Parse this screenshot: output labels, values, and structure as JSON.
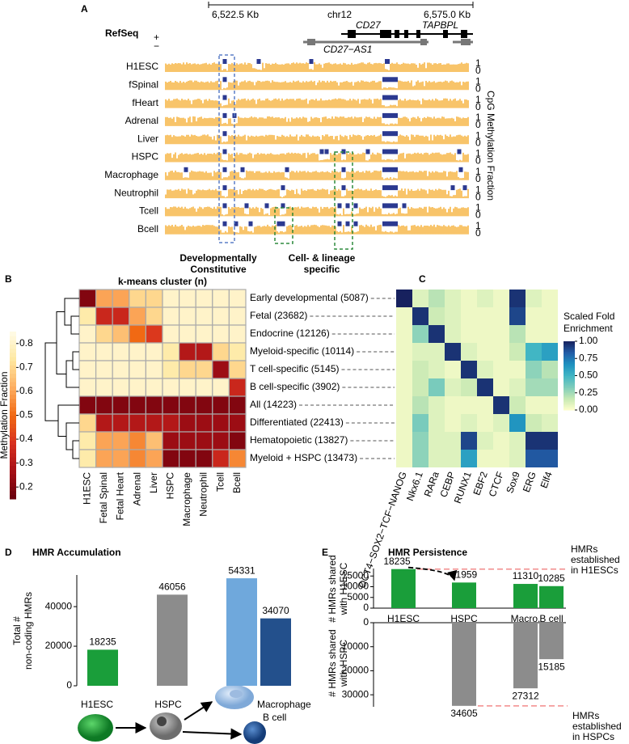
{
  "panel_labels": [
    "A",
    "B",
    "C",
    "D",
    "E"
  ],
  "browser": {
    "scale_left": "6,522.5 Kb",
    "chrom": "chr12",
    "scale_right": "6,575.0 Kb",
    "refseq": "RefSeq",
    "strand_plus": "+",
    "strand_minus": "−",
    "genes": [
      "CD27",
      "TAPBPL",
      "CD27−AS1"
    ],
    "tracks": [
      "H1ESC",
      "fSpinal",
      "fHeart",
      "Adrenal",
      "Liver",
      "HSPC",
      "Macrophage",
      "Neutrophil",
      "Tcell",
      "Bcell"
    ],
    "ylim": [
      0,
      1
    ],
    "axis_label": "CpG Methylation Fraction",
    "box_labels": [
      [
        "Developmentally",
        "Constitutive"
      ],
      [
        "Cell- & lineage",
        "specific"
      ]
    ]
  },
  "chart_data": [
    {
      "type": "heatmap",
      "title": "k-means cluster (n)",
      "columns": [
        "H1ESC",
        "Fetal Spinal",
        "Fetal Heart",
        "Adrenal",
        "Liver",
        "HSPC",
        "Macrophage",
        "Neutrophil",
        "Tcell",
        "Bcell"
      ],
      "rows": [
        "Early developmental (5087)",
        "Fetal (23682)",
        "Endocrine (12126)",
        "Myeloid-specific (10114)",
        "T cell-specific (5145)",
        "B cell-specific (3902)",
        "All (14223)",
        "Differentiated (22413)",
        "Hematopoietic (13827)",
        "Myeloid + HSPC (13473)"
      ],
      "values": [
        [
          0.2,
          0.6,
          0.6,
          0.7,
          0.7,
          0.8,
          0.8,
          0.8,
          0.8,
          0.8
        ],
        [
          0.75,
          0.35,
          0.35,
          0.6,
          0.7,
          0.8,
          0.8,
          0.8,
          0.8,
          0.8
        ],
        [
          0.8,
          0.7,
          0.65,
          0.5,
          0.4,
          0.8,
          0.8,
          0.8,
          0.8,
          0.8
        ],
        [
          0.8,
          0.8,
          0.8,
          0.8,
          0.8,
          0.75,
          0.3,
          0.3,
          0.7,
          0.75
        ],
        [
          0.8,
          0.8,
          0.8,
          0.8,
          0.8,
          0.75,
          0.7,
          0.7,
          0.25,
          0.7
        ],
        [
          0.8,
          0.8,
          0.8,
          0.8,
          0.8,
          0.8,
          0.8,
          0.8,
          0.8,
          0.35
        ],
        [
          0.2,
          0.2,
          0.2,
          0.2,
          0.2,
          0.2,
          0.2,
          0.2,
          0.2,
          0.2
        ],
        [
          0.7,
          0.3,
          0.3,
          0.3,
          0.3,
          0.3,
          0.25,
          0.25,
          0.25,
          0.25
        ],
        [
          0.75,
          0.6,
          0.6,
          0.55,
          0.65,
          0.25,
          0.25,
          0.25,
          0.25,
          0.2
        ],
        [
          0.75,
          0.6,
          0.6,
          0.55,
          0.6,
          0.2,
          0.2,
          0.2,
          0.35,
          0.55
        ]
      ],
      "zlim": [
        0.15,
        0.85
      ],
      "zticks": [
        0.2,
        0.3,
        0.4,
        0.5,
        0.6,
        0.7,
        0.8
      ],
      "colorbar_label": [
        "Methylation Fraction"
      ],
      "colors": [
        "#67000d",
        "#a50f15",
        "#d7301f",
        "#f16913",
        "#fdae61",
        "#fee8a0",
        "#fffbe8"
      ]
    },
    {
      "type": "heatmap",
      "columns": [
        "OCT4−SOX2−TCF−NANOG",
        "Nkx6.1",
        "RARa",
        "CEBP",
        "RUNX1",
        "EBF2",
        "CTCF",
        "Sox9",
        "ERG",
        "Elf4"
      ],
      "values": [
        [
          1.0,
          0.1,
          0.2,
          0.1,
          0.05,
          0.1,
          0.05,
          0.95,
          0.1,
          0.05
        ],
        [
          0.05,
          0.95,
          0.15,
          0.1,
          0.05,
          0.05,
          0.05,
          0.9,
          0.05,
          0.05
        ],
        [
          0.05,
          0.3,
          0.95,
          0.1,
          0.05,
          0.05,
          0.05,
          0.2,
          0.05,
          0.05
        ],
        [
          0.05,
          0.1,
          0.1,
          0.95,
          0.1,
          0.05,
          0.05,
          0.15,
          0.5,
          0.6
        ],
        [
          0.05,
          0.15,
          0.1,
          0.05,
          0.95,
          0.1,
          0.05,
          0.05,
          0.3,
          0.2
        ],
        [
          0.05,
          0.15,
          0.35,
          0.1,
          0.15,
          0.95,
          0.05,
          0.1,
          0.25,
          0.25
        ],
        [
          0.05,
          0.2,
          0.1,
          0.05,
          0.05,
          0.05,
          0.95,
          0.15,
          0.05,
          0.05
        ],
        [
          0.05,
          0.35,
          0.1,
          0.05,
          0.1,
          0.05,
          0.1,
          0.65,
          0.15,
          0.1
        ],
        [
          0.05,
          0.3,
          0.1,
          0.1,
          0.9,
          0.1,
          0.05,
          0.1,
          0.95,
          0.95
        ],
        [
          0.05,
          0.3,
          0.1,
          0.1,
          0.6,
          0.05,
          0.05,
          0.1,
          0.85,
          0.85
        ]
      ],
      "zlim": [
        0,
        1
      ],
      "zticks": [
        {
          "value": 1,
          "label": "1.00"
        },
        {
          "value": 0.75,
          "label": "0.75"
        },
        {
          "value": 0.5,
          "label": "0.50"
        },
        {
          "value": 0.25,
          "label": "0.25"
        },
        {
          "value": 0,
          "label": "0.00"
        }
      ],
      "colorbar_label": [
        "Scaled Fold",
        "Enrichment"
      ],
      "colors": [
        "#ffffcc",
        "#c7e9b4",
        "#7fcdbb",
        "#41b6c4",
        "#1d91c0",
        "#225ea8",
        "#17215e"
      ]
    },
    {
      "type": "bar",
      "title": "HMR Accumulation",
      "ylabel": [
        "Total #",
        "non-coding HMRs"
      ],
      "categories": [
        "H1ESC",
        "HSPC",
        "Macrophage",
        "B cell"
      ],
      "values": [
        18235,
        46056,
        54331,
        34070
      ],
      "colors": [
        "#1a9e3a",
        "#8c8c8c",
        "#6fa8dc",
        "#23508c"
      ],
      "ylim": [
        0,
        56000
      ],
      "yticks": [
        0,
        20000,
        40000
      ]
    },
    {
      "type": "bar",
      "title": "HMR Persistence",
      "ylabel": [
        "# HMRs shared",
        "with H1ESC"
      ],
      "categories": [
        "H1ESC",
        "HSPC",
        "Macro.",
        "B cell"
      ],
      "values": [
        18235,
        11959,
        11310,
        10285
      ],
      "color": "#1a9e3a",
      "ylim": [
        0,
        18500
      ],
      "yticks": [
        0,
        5000,
        10000,
        15000
      ],
      "annotation": [
        "HMRs",
        "established",
        "in H1ESCs"
      ]
    },
    {
      "type": "bar",
      "ylabel": [
        "# HMRs shared",
        "with HSPC"
      ],
      "values": [
        null,
        34605,
        27312,
        15185
      ],
      "color": "#8c8c8c",
      "ylim": [
        0,
        35000
      ],
      "yticks": [
        0,
        10000,
        20000,
        30000
      ],
      "annotation": [
        "HMRs",
        "established",
        "in HSPCs"
      ]
    }
  ]
}
